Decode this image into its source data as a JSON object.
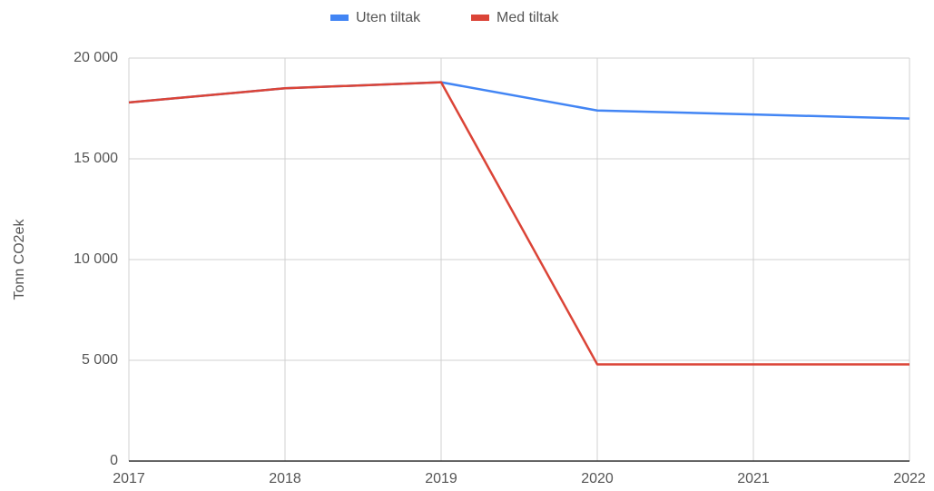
{
  "chart_data": {
    "type": "line",
    "y_label": "Tonn CO2ek",
    "x": [
      2017,
      2018,
      2019,
      2020,
      2021,
      2022
    ],
    "xlim": [
      2017,
      2022
    ],
    "xticks": [
      2017,
      2018,
      2019,
      2020,
      2021,
      2022
    ],
    "ylim": [
      0,
      20000
    ],
    "yticks": [
      0,
      {
        "value": 5000,
        "label": "5 000"
      },
      {
        "value": 10000,
        "label": "10 000"
      },
      {
        "value": 15000,
        "label": "15 000"
      },
      {
        "value": 20000,
        "label": "20 000"
      }
    ],
    "grid": true,
    "legend": "top",
    "series": [
      {
        "name": "Uten tiltak",
        "color": "#4285f4",
        "values": [
          17800,
          18500,
          18800,
          17400,
          17200,
          17000
        ]
      },
      {
        "name": "Med tiltak",
        "color": "#db4437",
        "values": [
          17800,
          18500,
          18800,
          4800,
          4800,
          4800
        ]
      }
    ]
  }
}
